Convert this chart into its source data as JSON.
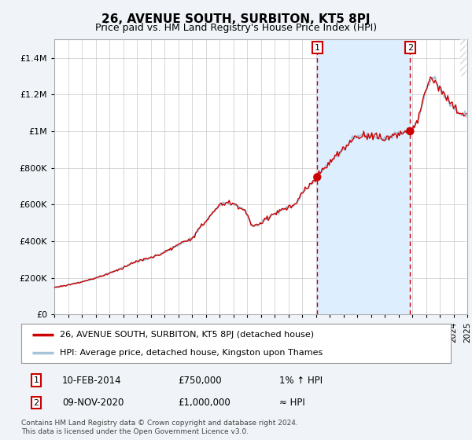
{
  "title": "26, AVENUE SOUTH, SURBITON, KT5 8PJ",
  "subtitle": "Price paid vs. HM Land Registry's House Price Index (HPI)",
  "legend_line1": "26, AVENUE SOUTH, SURBITON, KT5 8PJ (detached house)",
  "legend_line2": "HPI: Average price, detached house, Kingston upon Thames",
  "annotation1_date": "10-FEB-2014",
  "annotation1_price": "£750,000",
  "annotation1_hpi": "1% ↑ HPI",
  "annotation2_date": "09-NOV-2020",
  "annotation2_price": "£1,000,000",
  "annotation2_hpi": "≈ HPI",
  "footnote": "Contains HM Land Registry data © Crown copyright and database right 2024.\nThis data is licensed under the Open Government Licence v3.0.",
  "line_color_red": "#cc0000",
  "line_color_blue": "#a8c4d8",
  "shade_color": "#ddeeff",
  "vline_color": "#cc0000",
  "background_color": "#f0f4f8",
  "plot_bg_color": "#ffffff",
  "ylim": [
    0,
    1500000
  ],
  "yticks": [
    0,
    200000,
    400000,
    600000,
    800000,
    1000000,
    1200000,
    1400000
  ],
  "sale1_x": 2014.1,
  "sale1_y": 750000,
  "sale2_x": 2020.85,
  "sale2_y": 1000000,
  "xmin": 1995,
  "xmax": 2025,
  "key_points_x": [
    1995.0,
    1996.5,
    1998.0,
    1999.5,
    2001.0,
    2002.0,
    2003.0,
    2004.0,
    2005.0,
    2006.0,
    2007.5,
    2008.8,
    2009.5,
    2010.5,
    2011.5,
    2012.5,
    2013.0,
    2014.1,
    2015.0,
    2016.0,
    2017.0,
    2018.0,
    2019.0,
    2020.0,
    2020.85,
    2021.5,
    2022.0,
    2022.5,
    2023.0,
    2023.5,
    2024.0,
    2024.5
  ],
  "key_points_y": [
    148000,
    170000,
    200000,
    240000,
    290000,
    310000,
    340000,
    380000,
    420000,
    510000,
    610000,
    570000,
    480000,
    530000,
    570000,
    600000,
    660000,
    750000,
    830000,
    900000,
    970000,
    980000,
    960000,
    990000,
    1000000,
    1080000,
    1230000,
    1290000,
    1230000,
    1180000,
    1130000,
    1100000
  ]
}
